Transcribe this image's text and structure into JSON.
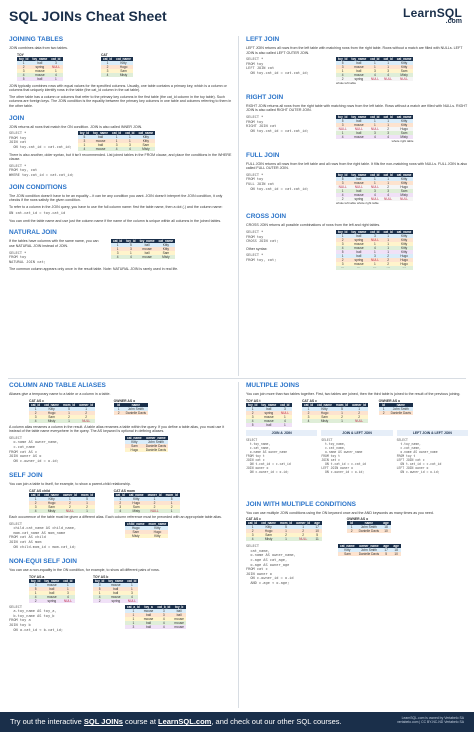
{
  "header": {
    "title": "SQL JOINs Cheat Sheet",
    "logo_main": "LearnSQL",
    "logo_sub": ".com"
  },
  "left": {
    "joining": {
      "title": "JOINING TABLES",
      "intro": "JOIN combines data from two tables.",
      "toy_name": "TOY",
      "cat_name": "CAT",
      "toy_headers": [
        "toy_id",
        "toy_name",
        "cat_id"
      ],
      "toy_rows": [
        [
          "1",
          "ball",
          "3"
        ],
        [
          "2",
          "spring",
          "NULL"
        ],
        [
          "3",
          "mouse",
          "1"
        ],
        [
          "4",
          "mouse",
          "4"
        ],
        [
          "5",
          "ball",
          "1"
        ]
      ],
      "cat_headers": [
        "cat_id",
        "cat_name"
      ],
      "cat_rows": [
        [
          "1",
          "Kitty"
        ],
        [
          "2",
          "Hugo"
        ],
        [
          "3",
          "Sam"
        ],
        [
          "4",
          "Misty"
        ]
      ],
      "p1": "JOIN typically combines rows with equal values for the specified columns. Usually, one table contains a primary key, which is a column or columns that uniquely identify rows in the table (the cat_id column in the cat table).",
      "p2": "The other table has a column or columns that refer to the primary key columns in the first table (the cat_id column in the toy table). Such columns are foreign keys. The JOIN condition is the equality between the primary key columns in one table and columns referring to them in the other table."
    },
    "join": {
      "title": "JOIN",
      "text": "JOIN returns all rows that match the ON condition. JOIN is also called INNER JOIN.",
      "code": "SELECT *\nFROM toy\nJOIN cat\n  ON toy.cat_id = cat.cat_id;",
      "alt_text": "There is also another, older syntax, but it isn't recommended. List joined tables in the FROM clause, and place the conditions in the WHERE clause.",
      "alt_code": "SELECT *\nFROM toy, cat\nWHERE toy.cat_id = cat.cat_id;",
      "headers": [
        "toy_id",
        "toy_name",
        "cat_id",
        "cat_id",
        "cat_name"
      ],
      "rows": [
        [
          "5",
          "ball",
          "1",
          "1",
          "Kitty"
        ],
        [
          "3",
          "mouse",
          "1",
          "1",
          "Kitty"
        ],
        [
          "1",
          "ball",
          "3",
          "3",
          "Sam"
        ],
        [
          "4",
          "mouse",
          "4",
          "4",
          "Misty"
        ]
      ]
    },
    "conditions": {
      "title": "JOIN CONDITIONS",
      "p1": "The JOIN condition doesn't have to be an equality – it can be any condition you want. JOIN doesn't interpret the JOIN condition, it only checks if the rows satisfy the given condition.",
      "p2": "To refer to a column in the JOIN query, you have to use the full column name: first the table name, then a dot (.) and the column name:",
      "code": "ON cat.cat_id = toy.cat_id",
      "p3": "You can omit the table name and use just the column name if the name of the column is unique within all columns in the joined tables."
    },
    "natural": {
      "title": "NATURAL JOIN",
      "text": "If the tables have columns with the same name, you can use NATURAL JOIN instead of JOIN.",
      "code": "SELECT *\nFROM toy\nNATURAL JOIN cat;",
      "headers": [
        "cat_id",
        "toy_id",
        "toy_name",
        "cat_name"
      ],
      "rows": [
        [
          "1",
          "5",
          "ball",
          "Kitty"
        ],
        [
          "1",
          "3",
          "mouse",
          "Kitty"
        ],
        [
          "3",
          "1",
          "ball",
          "Sam"
        ],
        [
          "4",
          "4",
          "mouse",
          "Misty"
        ]
      ],
      "note": "The common column appears only once in the result table. Note: NATURAL JOIN is rarely used in real life."
    }
  },
  "right": {
    "left_join": {
      "title": "LEFT JOIN",
      "text": "LEFT JOIN returns all rows from the left table with matching rows from the right table. Rows without a match are filled with NULLs. LEFT JOIN is also called LEFT OUTER JOIN.",
      "code": "SELECT *\nFROM toy\nLEFT JOIN cat\n  ON toy.cat_id = cat.cat_id;",
      "headers": [
        "toy_id",
        "toy_name",
        "cat_id",
        "cat_id",
        "cat_name"
      ],
      "rows": [
        [
          "5",
          "ball",
          "1",
          "1",
          "Kitty"
        ],
        [
          "3",
          "mouse",
          "1",
          "1",
          "Kitty"
        ],
        [
          "1",
          "ball",
          "3",
          "3",
          "Sam"
        ],
        [
          "4",
          "mouse",
          "4",
          "4",
          "Misty"
        ],
        [
          "2",
          "spring",
          "NULL",
          "NULL",
          "NULL"
        ]
      ],
      "caption": "whole left table"
    },
    "right_join": {
      "title": "RIGHT JOIN",
      "text": "RIGHT JOIN returns all rows from the right table with matching rows from the left table. Rows without a match are filled with NULLs. RIGHT JOIN is also called RIGHT OUTER JOIN.",
      "code": "SELECT *\nFROM toy\nRIGHT JOIN cat\n  ON toy.cat_id = cat.cat_id;",
      "headers": [
        "toy_id",
        "toy_name",
        "cat_id",
        "cat_id",
        "cat_name"
      ],
      "rows": [
        [
          "5",
          "ball",
          "1",
          "1",
          "Kitty"
        ],
        [
          "3",
          "mouse",
          "1",
          "1",
          "Kitty"
        ],
        [
          "NULL",
          "NULL",
          "NULL",
          "2",
          "Hugo"
        ],
        [
          "1",
          "ball",
          "3",
          "3",
          "Sam"
        ],
        [
          "4",
          "mouse",
          "4",
          "4",
          "Misty"
        ]
      ],
      "caption": "whole right table"
    },
    "full_join": {
      "title": "FULL JOIN",
      "text": "FULL JOIN returns all rows from the left table and all rows from the right table. It fills the non-matching rows with NULLs. FULL JOIN is also called FULL OUTER JOIN.",
      "code": "SELECT *\nFROM toy\nFULL JOIN cat\n  ON toy.cat_id = cat.cat_id;",
      "headers": [
        "toy_id",
        "toy_name",
        "cat_id",
        "cat_id",
        "cat_name"
      ],
      "rows": [
        [
          "5",
          "ball",
          "1",
          "1",
          "Kitty"
        ],
        [
          "3",
          "mouse",
          "1",
          "1",
          "Kitty"
        ],
        [
          "NULL",
          "NULL",
          "NULL",
          "2",
          "Hugo"
        ],
        [
          "1",
          "ball",
          "3",
          "3",
          "Sam"
        ],
        [
          "4",
          "mouse",
          "4",
          "4",
          "Misty"
        ],
        [
          "2",
          "spring",
          "NULL",
          "NULL",
          "NULL"
        ]
      ],
      "caption": "whole left table   whole right table"
    },
    "cross_join": {
      "title": "CROSS JOIN",
      "text": "CROSS JOIN returns all possible combinations of rows from the left and right tables.",
      "code": "SELECT *\nFROM toy\nCROSS JOIN cat;",
      "other_syntax": "Other syntax:",
      "code2": "SELECT *\nFROM toy, cat;",
      "headers": [
        "toy_id",
        "toy_name",
        "cat_id",
        "cat_id",
        "cat_name"
      ],
      "rows": [
        [
          "1",
          "ball",
          "3",
          "1",
          "Kitty"
        ],
        [
          "2",
          "spring",
          "NULL",
          "1",
          "Kitty"
        ],
        [
          "3",
          "mouse",
          "1",
          "1",
          "Kitty"
        ],
        [
          "4",
          "mouse",
          "4",
          "1",
          "Kitty"
        ],
        [
          "5",
          "ball",
          "1",
          "1",
          "Kitty"
        ],
        [
          "1",
          "ball",
          "3",
          "2",
          "Hugo"
        ],
        [
          "2",
          "spring",
          "NULL",
          "2",
          "Hugo"
        ],
        [
          "3",
          "mouse",
          "1",
          "2",
          "Hugo"
        ],
        [
          "···",
          "···",
          "···",
          "···",
          "···"
        ]
      ]
    }
  },
  "left2": {
    "aliases": {
      "title": "COLUMN AND TABLE ALIASES",
      "text": "Aliases give a temporary name to a table or a column in a table.",
      "cat_name": "CAT AS c",
      "owner_name": "OWNER AS o",
      "cat_headers": [
        "cat_id",
        "cat_name",
        "mom_id",
        "owner_id"
      ],
      "cat_rows": [
        [
          "1",
          "Kitty",
          "5",
          "1"
        ],
        [
          "2",
          "Hugo",
          "1",
          "2"
        ],
        [
          "3",
          "Sam",
          "2",
          "2"
        ],
        [
          "4",
          "Misty",
          "1",
          "NULL"
        ]
      ],
      "owner_headers": [
        "id",
        "name"
      ],
      "owner_rows": [
        [
          "1",
          "John Smith"
        ],
        [
          "2",
          "Danielle Davis"
        ]
      ],
      "p1": "A column alias renames a column in the result. A table alias renames a table within the query. If you define a table alias, you must use it instead of the table name everywhere in the query. The AS keyword is optional in defining aliases.",
      "code": "SELECT\n  o.name AS owner_name,\n  c.cat_name\nFROM cat AS c\nJOIN owner AS o\n  ON c.owner_id = o.id;",
      "res_headers": [
        "cat_name",
        "owner_name"
      ],
      "res_rows": [
        [
          "Kitty",
          "John Smith"
        ],
        [
          "Sam",
          "Danielle Davis"
        ],
        [
          "Hugo",
          "Danielle Davis"
        ]
      ]
    },
    "self_join": {
      "title": "SELF JOIN",
      "text": "You can join a table to itself, for example, to show a parent-child relationship.",
      "t1": "CAT AS child",
      "t2": "CAT AS mom",
      "headers": [
        "cat_id",
        "cat_name",
        "owner_id",
        "mom_id"
      ],
      "rows1": [
        [
          "1",
          "Kitty",
          "1",
          "5"
        ],
        [
          "2",
          "Hugo",
          "2",
          "1"
        ],
        [
          "3",
          "Sam",
          "2",
          "2"
        ],
        [
          "4",
          "Misty",
          "NULL",
          "1"
        ]
      ],
      "p1": "Each occurrence of the table must be given a different alias. Each column reference must be preceded with an appropriate table alias.",
      "code": "SELECT\n  child.cat_name AS child_name,\n  mom.cat_name AS mom_name\nFROM cat AS child\nJOIN cat AS mom\n  ON child.mom_id = mom.cat_id;",
      "res_headers": [
        "child_name",
        "mom_name"
      ],
      "res_rows": [
        [
          "Hugo",
          "Kitty"
        ],
        [
          "Sam",
          "Hugo"
        ],
        [
          "Misty",
          "Kitty"
        ]
      ]
    },
    "non_equi": {
      "title": "NON-EQUI SELF JOIN",
      "text": "You can use a non-equality in the ON condition, for example, to show all different pairs of rows.",
      "t1": "TOY AS a",
      "t2": "TOY AS b",
      "headers": [
        "toy_id",
        "toy_name",
        "cat_id"
      ],
      "rows": [
        [
          "3",
          "mouse",
          "1"
        ],
        [
          "5",
          "ball",
          "1"
        ],
        [
          "1",
          "ball",
          "3"
        ],
        [
          "4",
          "mouse",
          "4"
        ],
        [
          "2",
          "spring",
          "NULL"
        ]
      ],
      "code": "SELECT\n  a.toy_name AS toy_a,\n  b.toy_name AS toy_b\nFROM toy a\nJOIN toy b\n  ON a.cat_id < b.cat_id;",
      "res_headers": [
        "cat_a_id",
        "toy_a",
        "cat_b_id",
        "toy_b"
      ],
      "res_rows": [
        [
          "1",
          "mouse",
          "3",
          "ball"
        ],
        [
          "1",
          "ball",
          "3",
          "ball"
        ],
        [
          "1",
          "mouse",
          "4",
          "mouse"
        ],
        [
          "1",
          "ball",
          "4",
          "mouse"
        ],
        [
          "3",
          "ball",
          "4",
          "mouse"
        ]
      ]
    }
  },
  "right2": {
    "multiple": {
      "title": "MULTIPLE JOINS",
      "text": "You can join more than two tables together. First, two tables are joined, then the third table is joined to the result of the previous joining.",
      "t1": "TOY AS t",
      "t2": "CAT AS c",
      "t3": "OWNER AS o",
      "toy_headers": [
        "toy_id",
        "toy_name",
        "cat_id"
      ],
      "toy_rows": [
        [
          "1",
          "ball",
          "3"
        ],
        [
          "2",
          "spring",
          "NULL"
        ],
        [
          "3",
          "mouse",
          "1"
        ],
        [
          "4",
          "mouse",
          "4"
        ],
        [
          "5",
          "ball",
          "1"
        ]
      ],
      "cat_headers": [
        "cat_id",
        "cat_name",
        "mom_id",
        "owner_id"
      ],
      "cat_rows": [
        [
          "1",
          "Kitty",
          "5",
          "1"
        ],
        [
          "2",
          "Hugo",
          "1",
          "2"
        ],
        [
          "3",
          "Sam",
          "2",
          "2"
        ],
        [
          "4",
          "Misty",
          "1",
          "NULL"
        ]
      ],
      "owner_headers": [
        "id",
        "name"
      ],
      "owner_rows": [
        [
          "1",
          "John Smith"
        ],
        [
          "2",
          "Danielle Davis"
        ]
      ],
      "variants": [
        {
          "title": "JOIN & JOIN",
          "code": "SELECT\n  t.toy_name,\n  c.cat_name,\n  o.name AS owner_name\nFROM toy t\nJOIN cat c\n  ON t.cat_id = c.cat_id\nJOIN owner o\n  ON c.owner_id = o.id;"
        },
        {
          "title": "JOIN & LEFT JOIN",
          "code": "SELECT\n  t.toy_name,\n  c.cat_name,\n  o.name AS owner_name\nFROM toy t\nJOIN cat c\n  ON t.cat_id = c.cat_id\nLEFT JOIN owner o\n  ON c.owner_id = o.id;"
        },
        {
          "title": "LEFT JOIN & LEFT JOIN",
          "code": "SELECT\n  t.toy_name,\n  c.cat_name,\n  o.name AS owner_name\nFROM toy t\nLEFT JOIN cat c\n  ON t.cat_id = c.cat_id\nLEFT JOIN owner o\n  ON c.owner_id = o.id;"
        }
      ]
    },
    "multi_cond": {
      "title": "JOIN WITH MULTIPLE CONDITIONS",
      "text": "You can use multiple JOIN conditions using the ON keyword once and the AND keywords as many times as you need.",
      "t1": "CAT AS c",
      "t2": "OWNER AS o",
      "cat_headers": [
        "cat_id",
        "cat_name",
        "mom_id",
        "owner_id",
        "age"
      ],
      "cat_rows": [
        [
          "1",
          "Kitty",
          "5",
          "1",
          "17"
        ],
        [
          "2",
          "Hugo",
          "1",
          "2",
          "10"
        ],
        [
          "3",
          "Sam",
          "2",
          "2",
          "5"
        ],
        [
          "4",
          "Misty",
          "1",
          "NULL",
          "11"
        ]
      ],
      "owner_headers": [
        "id",
        "name",
        "age"
      ],
      "owner_rows": [
        [
          "1",
          "John Smith",
          "18"
        ],
        [
          "2",
          "Danielle Davis",
          "10"
        ]
      ],
      "code": "SELECT\n  cat_name,\n  o.name AS owner_name,\n  c.age AS cat_age,\n  o.age AS owner_age\nFROM cat c\nJOIN owner o\n  ON c.owner_id = o.id\n  AND c.age < o.age;",
      "res_headers": [
        "cat_name",
        "owner_name",
        "age",
        "age"
      ],
      "res_rows": [
        [
          "Kitty",
          "John Smith",
          "17",
          "18"
        ],
        [
          "Sam",
          "Danielle Davis",
          "5",
          "10"
        ]
      ]
    }
  },
  "footer": {
    "text_pre": "Try out the interactive ",
    "text_link1": "SQL JOINs",
    "text_mid": " course at ",
    "text_link2": "LearnSQL.com",
    "text_post": ", and check out our other SQL courses.",
    "right1": "LearnSQL.com is owned by Vertabelo SA",
    "right2": "vertabelo.com | CC BY-NC-ND Vertabelo SA"
  }
}
